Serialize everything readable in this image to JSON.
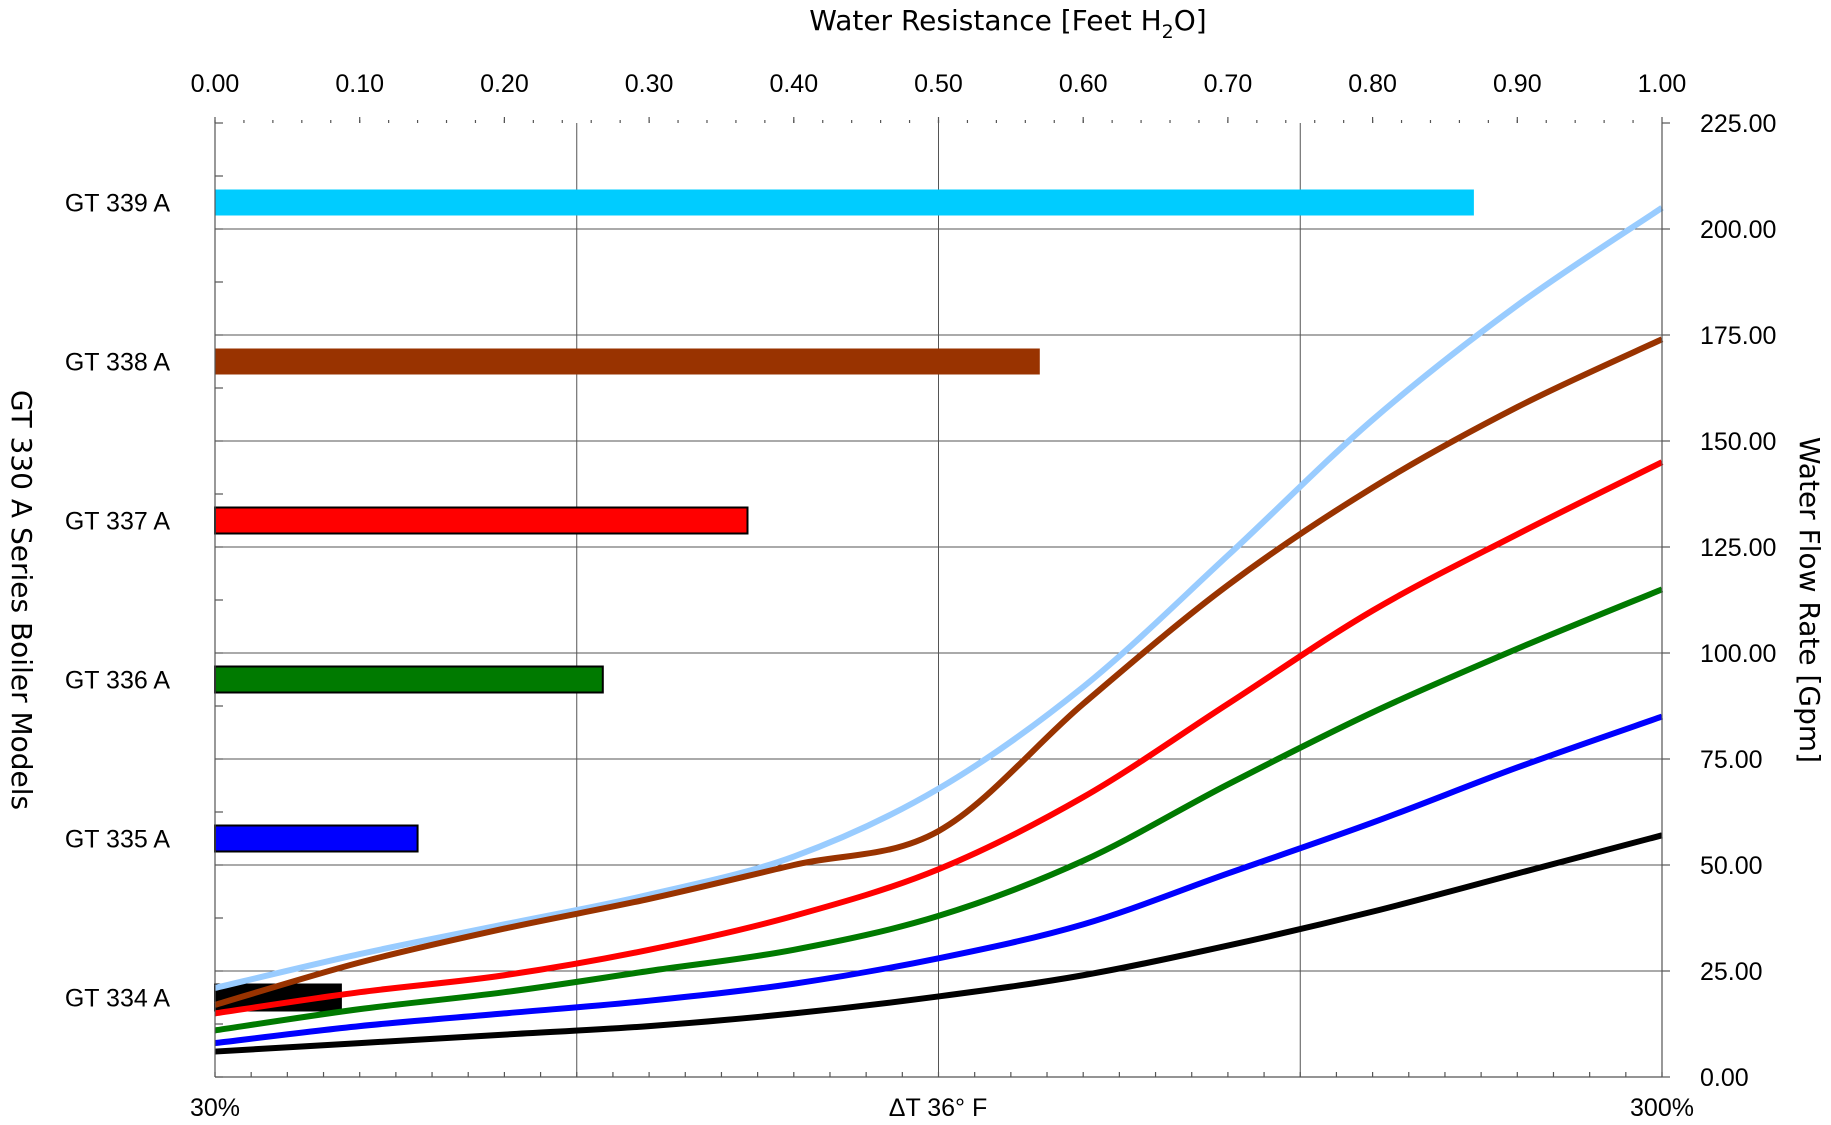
{
  "chart_data": {
    "type": "bar+line",
    "title_top": "Water Resistance [Feet H",
    "title_top_sub": "2",
    "title_top_end": "O]",
    "left_label": "GT 330 A Series Boiler Models",
    "right_label": "Water Flow Rate [Gpm]",
    "top_axis": {
      "range": [
        0,
        1.0
      ],
      "ticks": [
        "0.00",
        "0.10",
        "0.20",
        "0.30",
        "0.40",
        "0.50",
        "0.60",
        "0.70",
        "0.80",
        "0.90",
        "1.00"
      ]
    },
    "right_axis": {
      "range": [
        0,
        225
      ],
      "ticks": [
        "0.00",
        "25.00",
        "50.00",
        "75.00",
        "100.00",
        "125.00",
        "150.00",
        "175.00",
        "200.00",
        "225.00"
      ]
    },
    "bottom_axis": {
      "labels": [
        "30%",
        "ΔT 36° F",
        "300%"
      ]
    },
    "bars": [
      {
        "category": "GT 339 A",
        "value": 0.87,
        "color": "#00ccff"
      },
      {
        "category": "GT 338 A",
        "value": 0.57,
        "color": "#993300"
      },
      {
        "category": "GT 337 A",
        "value": 0.368,
        "color": "#ff0000"
      },
      {
        "category": "GT 336 A",
        "value": 0.268,
        "color": "#007a00"
      },
      {
        "category": "GT 335 A",
        "value": 0.14,
        "color": "#0000ff"
      },
      {
        "category": "GT 334 A",
        "value": 0.087,
        "color": "#000000"
      }
    ],
    "lines": [
      {
        "model": "GT 339 A",
        "color": "#99ccff",
        "x": [
          0,
          0.1,
          0.2,
          0.3,
          0.4,
          0.5,
          0.6,
          0.7,
          0.8,
          0.9,
          1.0
        ],
        "y": [
          21,
          29,
          36,
          43,
          52,
          68,
          92,
          123,
          155,
          182,
          205
        ]
      },
      {
        "model": "GT 338 A",
        "color": "#993300",
        "x": [
          0,
          0.1,
          0.2,
          0.3,
          0.4,
          0.5,
          0.6,
          0.7,
          0.8,
          0.9,
          1.0
        ],
        "y": [
          17,
          27,
          35,
          42,
          50,
          58,
          88,
          116,
          139,
          158,
          174
        ]
      },
      {
        "model": "GT 337 A",
        "color": "#ff0000",
        "x": [
          0,
          0.1,
          0.2,
          0.3,
          0.4,
          0.5,
          0.6,
          0.7,
          0.8,
          0.9,
          1.0
        ],
        "y": [
          15,
          20,
          24,
          30,
          38,
          49,
          66,
          88,
          110,
          128,
          145
        ]
      },
      {
        "model": "GT 336 A",
        "color": "#007a00",
        "x": [
          0,
          0.1,
          0.2,
          0.3,
          0.4,
          0.5,
          0.6,
          0.7,
          0.8,
          0.9,
          1.0
        ],
        "y": [
          11,
          16,
          20,
          25,
          30,
          38,
          51,
          69,
          86,
          101,
          115
        ]
      },
      {
        "model": "GT 335 A",
        "color": "#0000ff",
        "x": [
          0,
          0.1,
          0.2,
          0.3,
          0.4,
          0.5,
          0.6,
          0.7,
          0.8,
          0.9,
          1.0
        ],
        "y": [
          8,
          12,
          15,
          18,
          22,
          28,
          36,
          48,
          60,
          73,
          85
        ]
      },
      {
        "model": "GT 334 A",
        "color": "#000000",
        "x": [
          0,
          0.1,
          0.2,
          0.3,
          0.4,
          0.5,
          0.6,
          0.7,
          0.8,
          0.9,
          1.0
        ],
        "y": [
          6,
          8,
          10,
          12,
          15,
          19,
          24,
          31,
          39,
          48,
          57
        ]
      }
    ],
    "grid": true
  }
}
